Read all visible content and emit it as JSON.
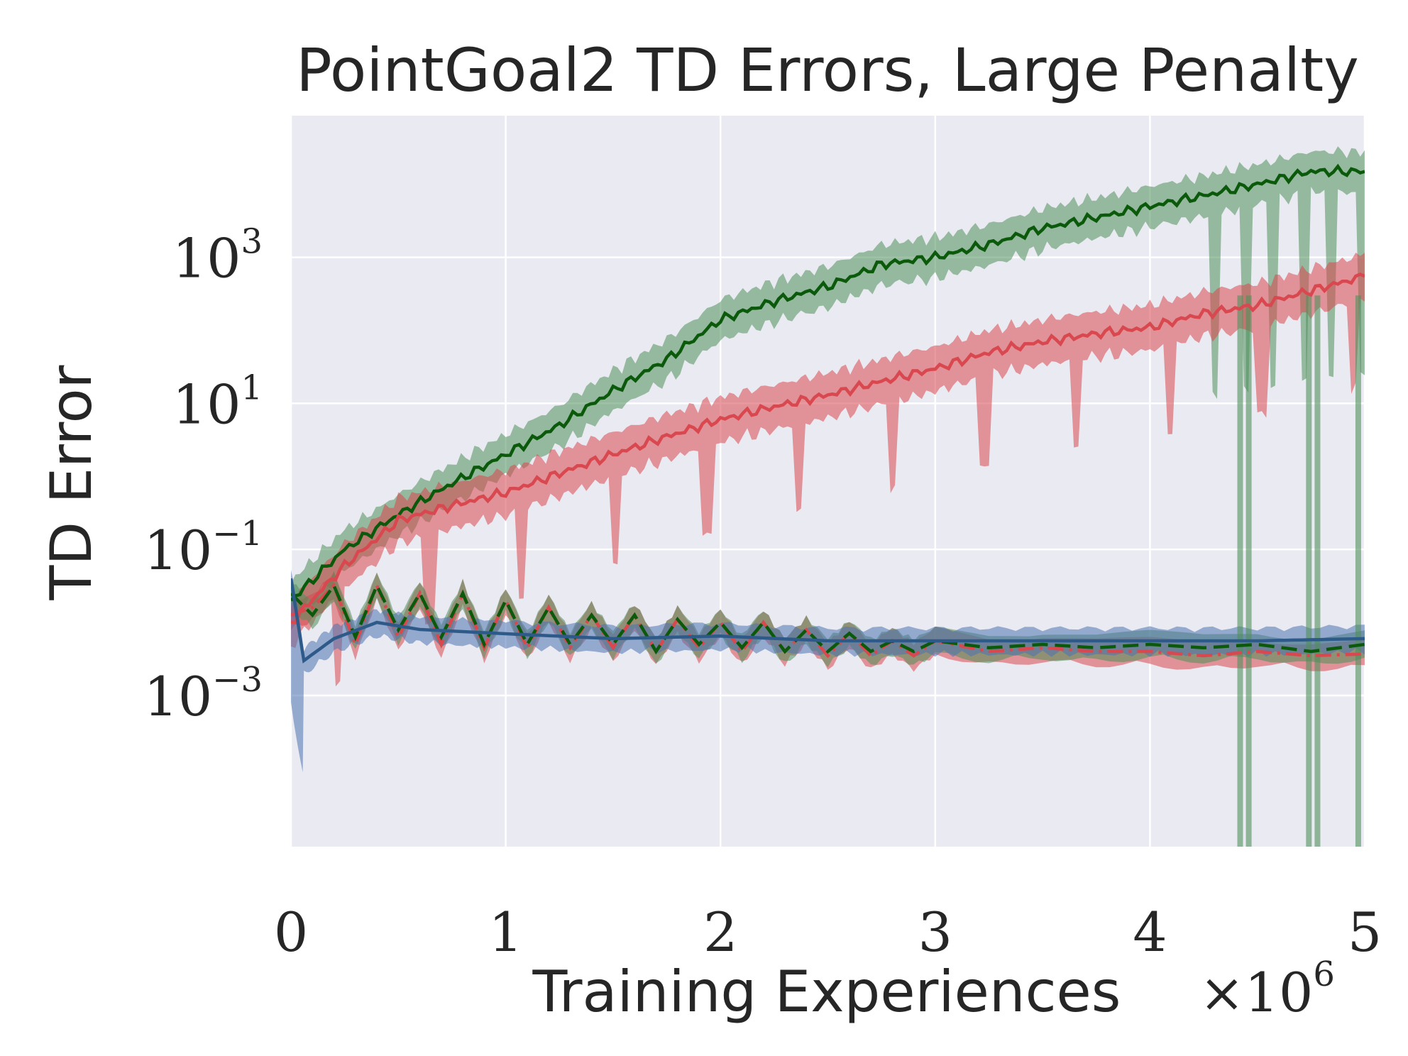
{
  "chart_data": {
    "type": "line",
    "title": "PointGoal2 TD Errors, Large Penalty",
    "xlabel": "Training Experiences",
    "x_multiplier_label": "×10",
    "x_multiplier_exp": "6",
    "ylabel": "TD Error",
    "xlim": [
      0,
      5
    ],
    "ylim": [
      8.5e-06,
      87000
    ],
    "yscale": "log",
    "grid": true,
    "background": "#eaeaf2",
    "xticks": [
      "0",
      "1",
      "2",
      "3",
      "4",
      "5"
    ],
    "yticks": [
      {
        "value": 1000,
        "base": "10",
        "exp": "3"
      },
      {
        "value": 10,
        "base": "10",
        "exp": "1"
      },
      {
        "value": 0.1,
        "base": "10",
        "exp": "−1"
      },
      {
        "value": 0.001,
        "base": "10",
        "exp": "−3"
      }
    ],
    "series": [
      {
        "color": "#0b5a0b",
        "style": "solid",
        "band_color": "#4f8f5a",
        "x": [
          0,
          0.25,
          0.5,
          0.75,
          1.0,
          1.25,
          1.5,
          1.75,
          2.0,
          2.25,
          2.5,
          2.75,
          3.0,
          3.25,
          3.5,
          3.75,
          4.0,
          4.25,
          4.5,
          4.75,
          5.0
        ],
        "y": [
          0.02,
          0.1,
          0.3,
          0.8,
          2,
          5,
          15,
          40,
          140,
          250,
          400,
          800,
          1000,
          1500,
          2500,
          3500,
          5000,
          7000,
          10000,
          15000,
          15000
        ]
      },
      {
        "color": "#d9474f",
        "style": "solid",
        "band_color": "#d9474f",
        "x": [
          0,
          0.25,
          0.5,
          0.75,
          1.0,
          1.25,
          1.5,
          1.75,
          2.0,
          2.25,
          2.5,
          2.75,
          3.0,
          3.25,
          3.5,
          3.75,
          4.0,
          4.25,
          4.5,
          4.75,
          5.0
        ],
        "y": [
          0.01,
          0.06,
          0.25,
          0.4,
          0.6,
          1.1,
          2,
          3.5,
          6,
          9,
          13,
          20,
          30,
          50,
          70,
          90,
          110,
          170,
          220,
          350,
          550
        ]
      },
      {
        "color": "#d9474f",
        "style": "dashdot",
        "band_color": "#d9474f",
        "x": [
          0,
          0.1,
          0.2,
          0.3,
          0.4,
          0.5,
          0.6,
          0.7,
          0.8,
          0.9,
          1.0,
          1.1,
          1.2,
          1.3,
          1.4,
          1.5,
          1.6,
          1.7,
          1.8,
          1.9,
          2.0,
          2.1,
          2.2,
          2.3,
          2.4,
          2.5,
          2.6,
          2.7,
          2.8,
          2.9,
          3.0,
          3.25,
          3.5,
          3.75,
          4.0,
          4.25,
          4.5,
          4.75,
          5.0
        ],
        "y": [
          0.0126,
          0.016,
          0.032,
          0.005,
          0.032,
          0.0063,
          0.025,
          0.005,
          0.025,
          0.0045,
          0.02,
          0.0045,
          0.016,
          0.0045,
          0.0126,
          0.0045,
          0.0126,
          0.004,
          0.011,
          0.0045,
          0.01,
          0.004,
          0.01,
          0.004,
          0.0079,
          0.0035,
          0.0071,
          0.0035,
          0.0056,
          0.0035,
          0.0056,
          0.004,
          0.0045,
          0.004,
          0.004,
          0.0035,
          0.004,
          0.0035,
          0.0037
        ]
      },
      {
        "color": "#0b5a0b",
        "style": "dashed",
        "band_color": "#4f8f5a",
        "x": [
          0,
          0.1,
          0.2,
          0.3,
          0.4,
          0.5,
          0.6,
          0.7,
          0.8,
          0.9,
          1.0,
          1.1,
          1.2,
          1.3,
          1.4,
          1.5,
          1.6,
          1.7,
          1.8,
          1.9,
          2.0,
          2.1,
          2.2,
          2.3,
          2.4,
          2.5,
          2.6,
          2.7,
          2.8,
          2.9,
          3.0,
          3.25,
          3.5,
          3.75,
          4.0,
          4.25,
          4.5,
          4.75,
          5.0
        ],
        "y": [
          0.025,
          0.0126,
          0.032,
          0.0063,
          0.032,
          0.0079,
          0.025,
          0.0063,
          0.025,
          0.005,
          0.02,
          0.005,
          0.016,
          0.005,
          0.0126,
          0.005,
          0.0126,
          0.004,
          0.011,
          0.005,
          0.01,
          0.0045,
          0.01,
          0.004,
          0.0079,
          0.004,
          0.0071,
          0.004,
          0.0056,
          0.004,
          0.0056,
          0.0045,
          0.005,
          0.0045,
          0.005,
          0.0045,
          0.005,
          0.004,
          0.005
        ]
      },
      {
        "color": "#2e5a8a",
        "style": "solid",
        "band_color": "#4c72b0",
        "x": [
          0,
          0.06,
          0.2,
          0.4,
          0.6,
          1.0,
          1.5,
          2.0,
          2.5,
          3.0,
          3.5,
          4.0,
          4.5,
          5.0
        ],
        "y": [
          0.04,
          0.003,
          0.006,
          0.01,
          0.008,
          0.007,
          0.006,
          0.0065,
          0.0056,
          0.0056,
          0.0056,
          0.0056,
          0.0056,
          0.006
        ]
      }
    ]
  }
}
